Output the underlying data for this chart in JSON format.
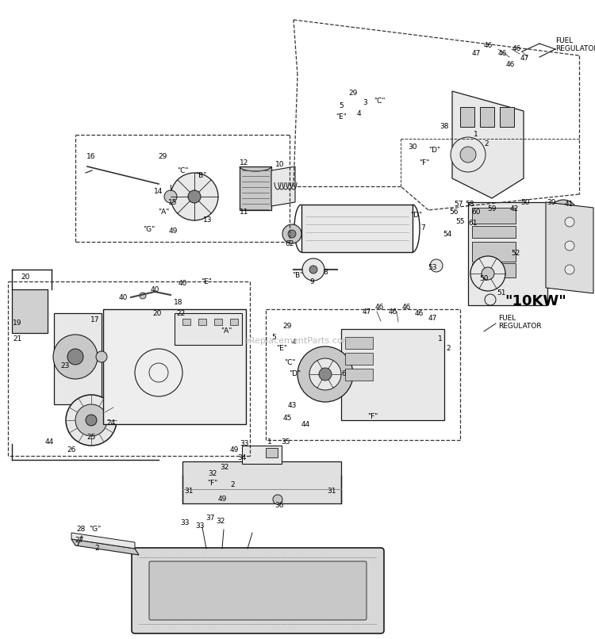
{
  "bg_color": "#ffffff",
  "line_color": "#1a1a1a",
  "dash_color": "#333333",
  "text_color": "#000000",
  "watermark": "eReplacementParts.com",
  "figsize": [
    7.5,
    8.06
  ],
  "dpi": 100,
  "title_10kw": "\"10KW\"",
  "fuel_reg": "FUEL\nREGULATOR",
  "gray_fill": "#c8c8c8",
  "light_gray": "#e8e8e8",
  "dark_gray": "#888888",
  "mid_gray": "#aaaaaa"
}
